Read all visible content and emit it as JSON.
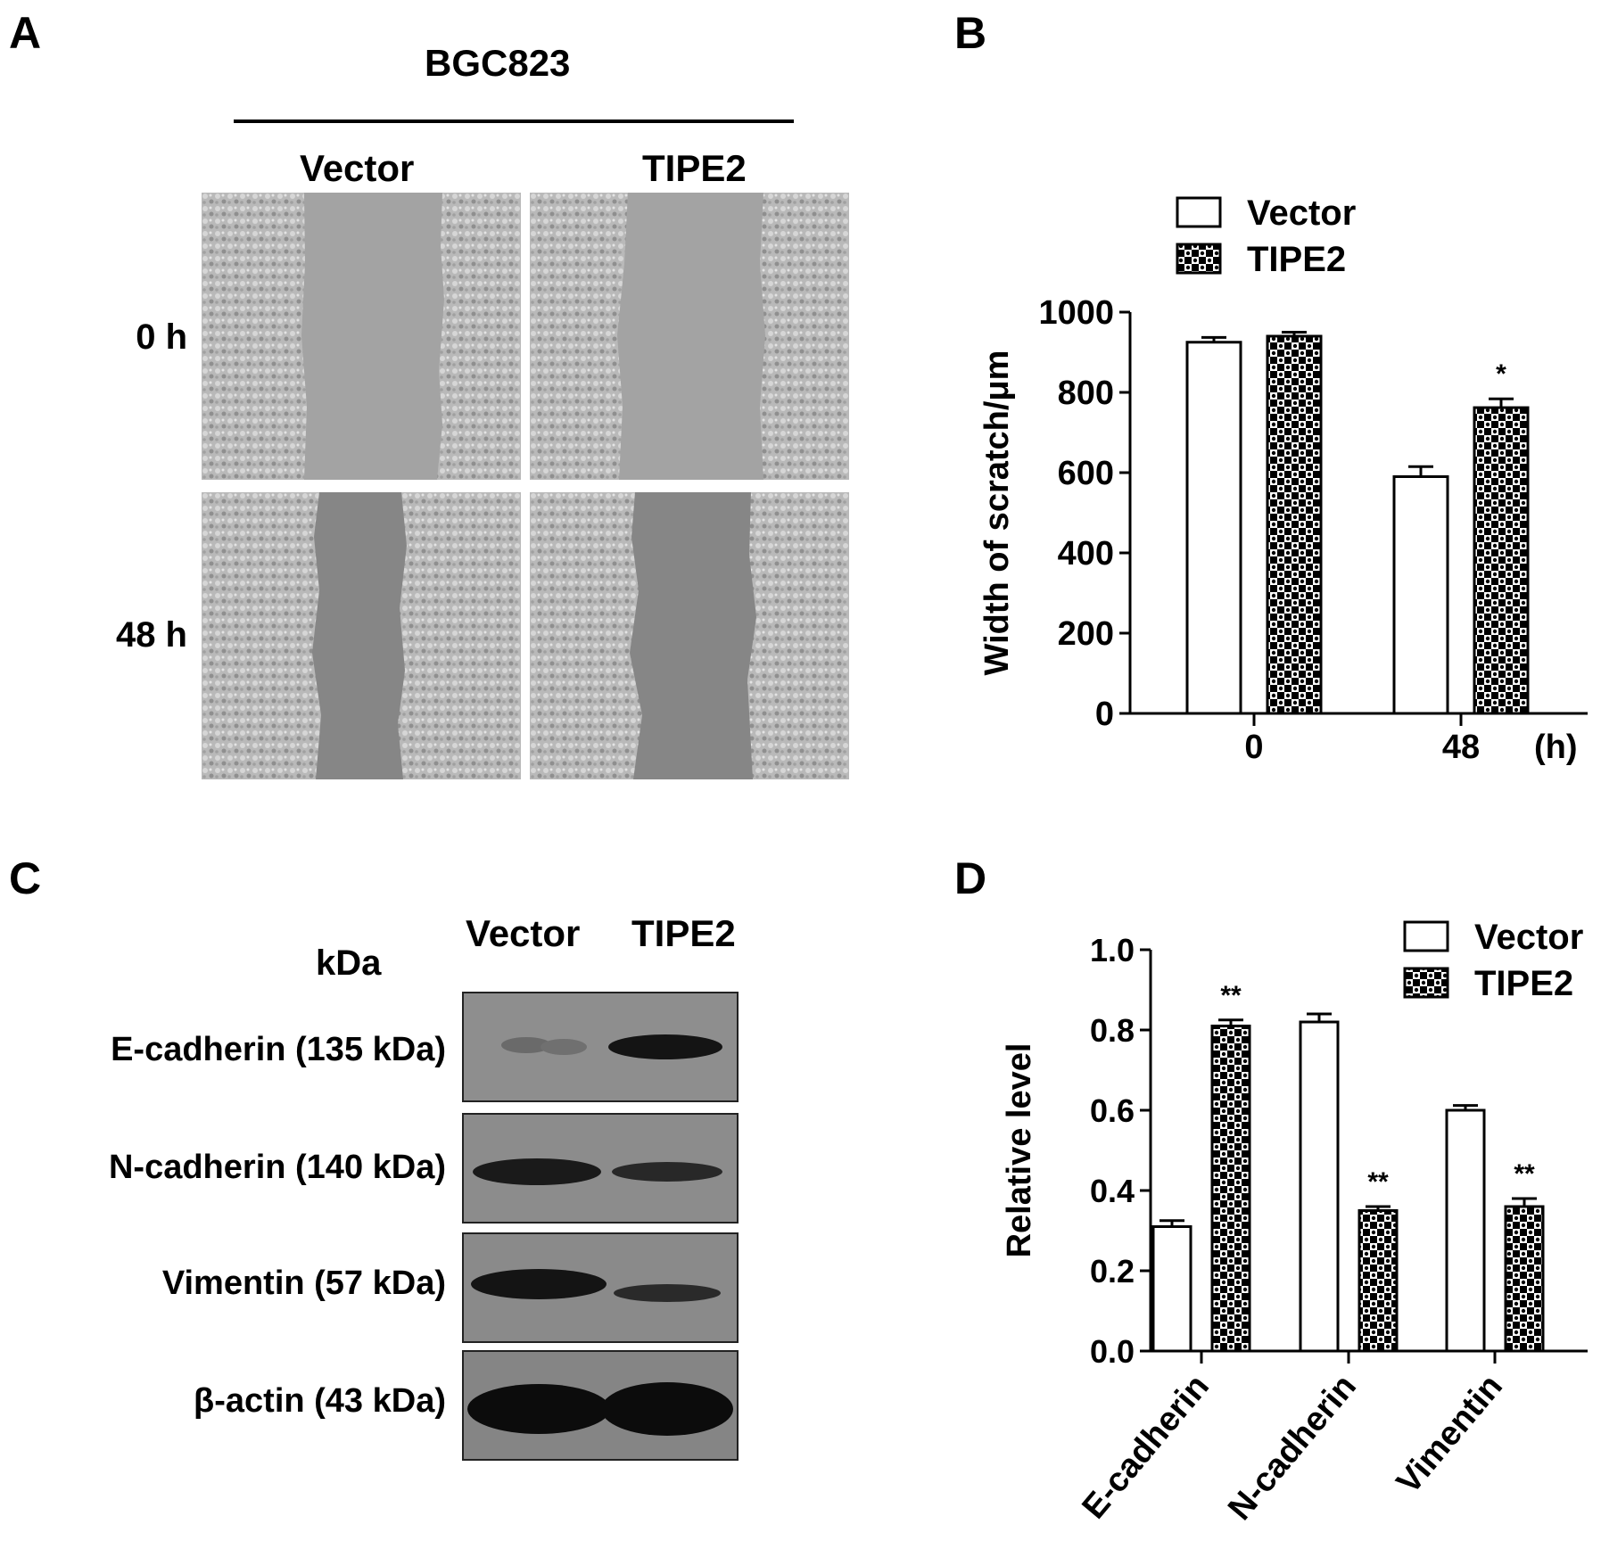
{
  "panels": {
    "A": {
      "letter": "A",
      "cell_line": "BGC823",
      "columns": [
        "Vector",
        "TIPE2"
      ],
      "rows": [
        "0 h",
        "48 h"
      ]
    },
    "B": {
      "letter": "B"
    },
    "C": {
      "letter": "C",
      "kda_header": "kDa",
      "columns": [
        "Vector",
        "TIPE2"
      ],
      "bands": [
        {
          "label": "E-cadherin (135 kDa)",
          "vector_intensity": 0.2,
          "tipe2_intensity": 0.85
        },
        {
          "label": "N-cadherin (140 kDa)",
          "vector_intensity": 0.85,
          "tipe2_intensity": 0.65
        },
        {
          "label": "Vimentin (57 kDa)",
          "vector_intensity": 0.9,
          "tipe2_intensity": 0.55
        },
        {
          "label": "β-actin (43 kDa)",
          "vector_intensity": 1.0,
          "tipe2_intensity": 1.0
        }
      ]
    },
    "D": {
      "letter": "D"
    }
  },
  "chart_data": [
    {
      "panel": "B",
      "type": "bar",
      "categories": [
        "0",
        "48"
      ],
      "x_unit": "(h)",
      "ylabel": "Width of scratch/μm",
      "ylim": [
        0,
        1000
      ],
      "yticks": [
        "0",
        "200",
        "400",
        "600",
        "800",
        "1000"
      ],
      "series": [
        {
          "name": "Vector",
          "fill": "white",
          "values": [
            925,
            590
          ],
          "errors": [
            12,
            25
          ]
        },
        {
          "name": "TIPE2",
          "fill": "checkered",
          "values": [
            940,
            762
          ],
          "errors": [
            10,
            22
          ]
        }
      ],
      "annotations": [
        {
          "category": "48",
          "series": "TIPE2",
          "text": "*"
        }
      ],
      "legend": "top-left"
    },
    {
      "panel": "D",
      "type": "bar",
      "categories": [
        "E-cadherin",
        "N-cadherin",
        "Vimentin"
      ],
      "ylabel": "Relative level",
      "ylim": [
        0,
        1.0
      ],
      "yticks": [
        "0.0",
        "0.2",
        "0.4",
        "0.6",
        "0.8",
        "1.0"
      ],
      "series": [
        {
          "name": "Vector",
          "fill": "white",
          "values": [
            0.31,
            0.82,
            0.6
          ],
          "errors": [
            0.015,
            0.02,
            0.012
          ]
        },
        {
          "name": "TIPE2",
          "fill": "checkered",
          "values": [
            0.81,
            0.35,
            0.36
          ],
          "errors": [
            0.015,
            0.01,
            0.02
          ]
        }
      ],
      "annotations": [
        {
          "category": "E-cadherin",
          "series": "TIPE2",
          "text": "**"
        },
        {
          "category": "N-cadherin",
          "series": "TIPE2",
          "text": "**"
        },
        {
          "category": "Vimentin",
          "series": "TIPE2",
          "text": "**"
        }
      ],
      "legend": "top-right"
    }
  ]
}
